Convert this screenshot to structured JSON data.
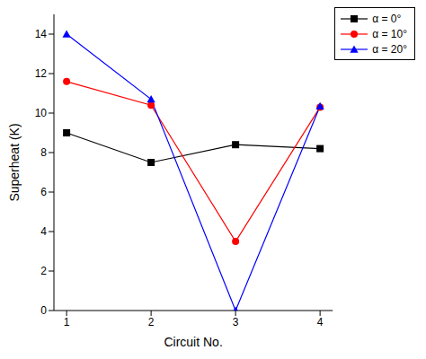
{
  "chart_data": {
    "type": "line",
    "x_label": "Circuit No.",
    "y_label": "Superheat (K)",
    "x": [
      1,
      2,
      3,
      4
    ],
    "xlim": [
      0.85,
      4.15
    ],
    "xticks": [
      1,
      2,
      3,
      4
    ],
    "ylim": [
      0,
      15
    ],
    "yticks": [
      0,
      2,
      4,
      6,
      8,
      10,
      12,
      14
    ],
    "grid": false,
    "legend": "upper right",
    "series": [
      {
        "name": "α = 0°",
        "color": "#000000",
        "marker": "square",
        "values": [
          9,
          7.5,
          8.4,
          8.2
        ]
      },
      {
        "name": "α = 10°",
        "color": "#ff0000",
        "marker": "circle",
        "values": [
          11.6,
          10.4,
          3.5,
          10.3
        ]
      },
      {
        "name": "α = 20°",
        "color": "#0000ff",
        "marker": "triangle",
        "values": [
          14,
          10.7,
          0,
          10.35
        ]
      }
    ]
  }
}
